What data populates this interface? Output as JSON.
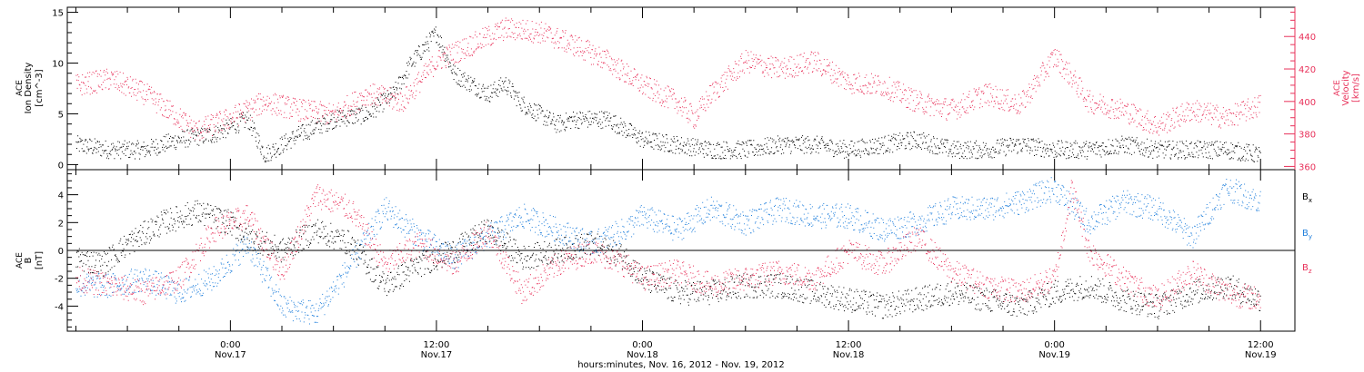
{
  "colors": {
    "black": "#000000",
    "red": "#e8315a",
    "blue": "#1f7fdc",
    "axis": "#000000"
  },
  "footer": {
    "xlabel": "hours:minutes, Nov. 16, 2012 - Nov. 19, 2012"
  },
  "chart_data": [
    {
      "type": "scatter",
      "panel": "top",
      "ylabel_left_lines": [
        "ACE",
        "Ion Density",
        "[cm^-3]"
      ],
      "ylabel_right_lines": [
        "ACE",
        "Velocity",
        "[km/s]"
      ],
      "ylim_left": [
        -0.5,
        15.5
      ],
      "ylim_right": [
        358,
        458
      ],
      "yticks_left": [
        0,
        5,
        10,
        15
      ],
      "yticks_right": [
        360,
        380,
        400,
        420,
        440
      ],
      "grid": false,
      "x_unit": "hours since Nov. 16, 2012 00:00",
      "xlim": [
        14.5,
        86.0
      ],
      "series": [
        {
          "axis": "left",
          "color": "black",
          "x": [
            15.0,
            17.0,
            19.0,
            21.0,
            23.0,
            25.0,
            26.0,
            28.0,
            30.0,
            32.0,
            33.5,
            34.5,
            35.5,
            36.0,
            37.0,
            38.0,
            39.0,
            40.0,
            41.0,
            42.0,
            43.0,
            44.0,
            46.0,
            48.0,
            50.0,
            52.0,
            54.0,
            56.0,
            58.0,
            60.0,
            62.0,
            64.0,
            66.0,
            68.0,
            70.0,
            72.0,
            74.0,
            76.0,
            78.0,
            80.0,
            82.0,
            84.0
          ],
          "y": [
            2.0,
            1.5,
            1.5,
            2.5,
            3.0,
            4.5,
            1.0,
            3.0,
            4.5,
            5.0,
            7.0,
            10.0,
            12.0,
            13.0,
            9.0,
            8.0,
            7.0,
            8.0,
            6.0,
            5.0,
            4.0,
            4.5,
            4.5,
            2.5,
            2.0,
            1.5,
            1.5,
            2.0,
            2.0,
            1.5,
            2.0,
            2.5,
            1.5,
            1.5,
            2.0,
            1.5,
            1.5,
            2.0,
            1.5,
            1.5,
            1.5,
            1.0
          ]
        },
        {
          "axis": "right",
          "color": "red",
          "x": [
            15.0,
            17.0,
            19.0,
            21.0,
            22.0,
            24.0,
            26.0,
            28.0,
            30.0,
            32.0,
            34.0,
            36.0,
            38.0,
            40.0,
            42.0,
            44.0,
            46.0,
            48.0,
            50.0,
            51.0,
            52.0,
            54.0,
            56.0,
            58.0,
            60.0,
            62.0,
            64.0,
            66.0,
            68.0,
            70.0,
            72.0,
            73.0,
            74.0,
            76.0,
            78.0,
            80.0,
            82.0,
            84.0
          ],
          "y": [
            410,
            414,
            405,
            390,
            382,
            390,
            400,
            395,
            392,
            405,
            400,
            425,
            435,
            445,
            443,
            435,
            425,
            410,
            400,
            390,
            405,
            425,
            420,
            425,
            412,
            410,
            400,
            395,
            405,
            398,
            428,
            415,
            400,
            395,
            385,
            395,
            390,
            398
          ]
        }
      ]
    },
    {
      "type": "scatter",
      "panel": "bottom",
      "ylabel_left_lines": [
        "ACE",
        "B",
        "[nT]"
      ],
      "ylim": [
        -5.8,
        5.8
      ],
      "yticks": [
        -4,
        -2,
        0,
        2,
        4
      ],
      "zero_line": true,
      "grid": false,
      "legend": "right",
      "x_unit": "hours since Nov. 16, 2012 00:00",
      "xlim": [
        14.5,
        86.0
      ],
      "series": [
        {
          "name": "B_x",
          "color": "black",
          "x": [
            15.0,
            16.5,
            18.0,
            20.0,
            22.0,
            24.0,
            25.0,
            27.0,
            29.0,
            31.0,
            33.0,
            35.0,
            37.0,
            39.0,
            41.0,
            43.0,
            45.0,
            47.0,
            48.0,
            50.0,
            52.0,
            54.0,
            56.0,
            58.0,
            60.0,
            62.0,
            64.0,
            66.0,
            68.0,
            70.0,
            72.0,
            74.0,
            76.0,
            78.0,
            80.0,
            82.0,
            84.0
          ],
          "y": [
            -0.5,
            -1.0,
            0.5,
            2.0,
            2.8,
            2.0,
            1.0,
            0.0,
            1.5,
            0.5,
            -2.5,
            -1.0,
            0.0,
            1.5,
            -0.5,
            0.0,
            0.5,
            -0.5,
            -2.0,
            -3.0,
            -3.0,
            -2.5,
            -2.5,
            -3.0,
            -3.5,
            -4.0,
            -3.5,
            -3.0,
            -3.5,
            -4.0,
            -3.0,
            -2.5,
            -3.5,
            -4.0,
            -3.0,
            -2.5,
            -3.5
          ]
        },
        {
          "name": "B_y",
          "color": "blue",
          "x": [
            15.0,
            17.0,
            19.0,
            21.0,
            23.0,
            25.0,
            27.0,
            29.0,
            31.0,
            33.0,
            35.0,
            37.0,
            39.0,
            41.0,
            43.0,
            45.0,
            47.0,
            48.0,
            50.0,
            52.0,
            54.0,
            56.0,
            58.0,
            60.0,
            62.0,
            64.0,
            66.0,
            68.0,
            70.0,
            72.0,
            74.0,
            76.0,
            78.0,
            80.0,
            82.0,
            84.0
          ],
          "y": [
            -2.5,
            -2.5,
            -2.0,
            -3.0,
            -2.0,
            0.5,
            -4.0,
            -4.5,
            -1.0,
            3.0,
            1.0,
            -0.5,
            1.0,
            2.5,
            1.5,
            0.5,
            1.5,
            2.5,
            1.5,
            3.0,
            2.0,
            3.0,
            2.5,
            2.5,
            1.5,
            2.0,
            3.0,
            3.0,
            3.5,
            4.5,
            2.0,
            3.5,
            3.0,
            1.0,
            4.5,
            3.5
          ]
        },
        {
          "name": "B_z",
          "color": "red",
          "x": [
            15.0,
            17.0,
            19.0,
            21.0,
            23.0,
            25.0,
            27.0,
            29.0,
            31.0,
            33.0,
            35.0,
            37.0,
            39.0,
            41.0,
            43.0,
            45.0,
            47.0,
            48.0,
            50.0,
            52.0,
            54.0,
            56.0,
            58.0,
            60.0,
            62.0,
            64.0,
            66.0,
            68.0,
            70.0,
            72.0,
            73.0,
            74.0,
            76.0,
            78.0,
            80.0,
            82.0,
            84.0
          ],
          "y": [
            -2.0,
            -2.5,
            -3.0,
            -2.0,
            1.5,
            2.5,
            -1.5,
            4.0,
            3.0,
            -1.0,
            0.5,
            -1.0,
            1.5,
            -3.0,
            -1.0,
            0.0,
            -1.0,
            -2.0,
            -1.5,
            -2.5,
            -2.0,
            -1.5,
            -2.0,
            0.0,
            -1.0,
            1.0,
            -1.5,
            -2.5,
            -3.0,
            -2.0,
            4.5,
            0.0,
            -2.0,
            -3.5,
            -1.5,
            -3.0,
            -3.5
          ]
        }
      ],
      "legend_entries": [
        "B",
        "B",
        "B"
      ],
      "legend_subscripts": [
        "x",
        "y",
        "z"
      ]
    }
  ],
  "x_axis": {
    "tick_hours": [
      24,
      36,
      48,
      60,
      72,
      84
    ],
    "tick_time_labels": [
      "0:00",
      "12:00",
      "0:00",
      "12:00",
      "0:00",
      "12:00"
    ],
    "tick_date_labels": [
      "Nov.17",
      "Nov.17",
      "Nov.18",
      "Nov.18",
      "Nov.19",
      "Nov.19"
    ]
  }
}
